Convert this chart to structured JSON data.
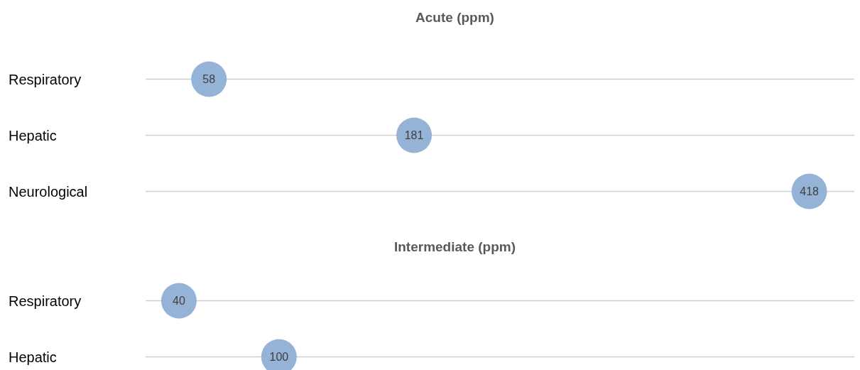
{
  "chart_data": [
    {
      "type": "scatter",
      "title": "Acute (ppm)",
      "orientation": "horizontal",
      "categories": [
        "Respiratory",
        "Hepatic",
        "Neurological"
      ],
      "values": [
        58,
        181,
        418
      ],
      "color": "#95b3d7",
      "xlim": [
        20,
        445
      ],
      "grid": "y",
      "data_labels": true,
      "tick_labels": "y"
    },
    {
      "type": "scatter",
      "title": "Intermediate (ppm)",
      "orientation": "horizontal",
      "categories": [
        "Respiratory",
        "Hepatic"
      ],
      "values": [
        40,
        100
      ],
      "color": "#95b3d7",
      "xlim": [
        20,
        445
      ],
      "grid": "y",
      "data_labels": true,
      "tick_labels": "y"
    }
  ]
}
